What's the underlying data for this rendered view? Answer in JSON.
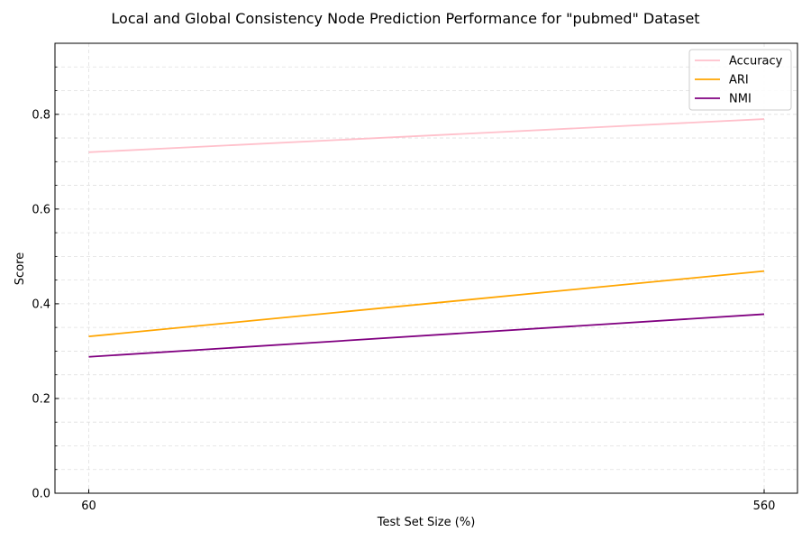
{
  "chart_data": {
    "type": "line",
    "title": "Local and Global Consistency Node Prediction Performance for \"pubmed\" Dataset",
    "xlabel": "Test Set Size (%)",
    "ylabel": "Score",
    "x": [
      60,
      560
    ],
    "x_tick_labels": [
      "60",
      "560"
    ],
    "ylim": [
      0.0,
      0.95
    ],
    "y_ticks": [
      0.0,
      0.2,
      0.4,
      0.6,
      0.8
    ],
    "y_tick_labels": [
      "0.0",
      "0.2",
      "0.4",
      "0.6",
      "0.8"
    ],
    "grid": true,
    "legend_position": "top-right",
    "series": [
      {
        "name": "Accuracy",
        "values": [
          0.72,
          0.79
        ],
        "color": "#ffc0cb"
      },
      {
        "name": "ARI",
        "values": [
          0.331,
          0.469
        ],
        "color": "#ffa500"
      },
      {
        "name": "NMI",
        "values": [
          0.288,
          0.378
        ],
        "color": "#800080"
      }
    ]
  }
}
